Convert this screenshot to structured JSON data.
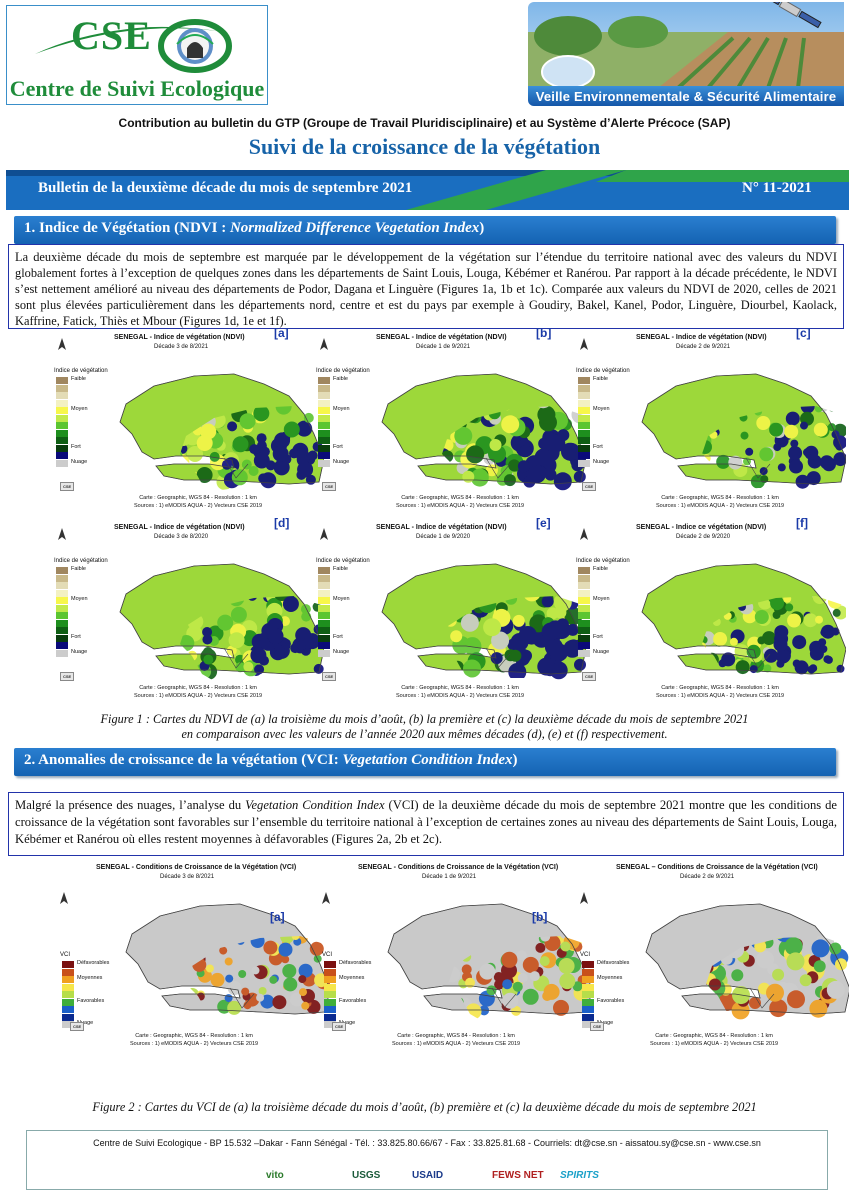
{
  "header": {
    "logo_acronym": "CSE",
    "logo_name": "Centre de Suivi Ecologique",
    "banner_text": "Veille Environnementale  & Sécurité Alimentaire",
    "contribution": "Contribution au bulletin du GTP (Groupe de Travail Pluridisciplinaire) et au Système d’Alerte Précoce (SAP)",
    "main_title": "Suivi de la croissance de la végétation",
    "bulletin_title": "Bulletin de la deuxième décade du mois  de septembre 2021",
    "bulletin_number": "N° 11-2021"
  },
  "section1": {
    "title_prefix": "1. Indice de Végétation (NDVI : ",
    "title_em": "Normalized Difference Vegetation Index",
    "title_suffix": ")",
    "body": "La deuxième décade du mois de septembre est marquée par le développement de la végétation sur l’étendue du territoire national avec des valeurs du NDVI globalement fortes à l’exception de quelques zones dans les départements de Saint Louis, Louga, Kébémer et Ranérou. Par rapport à la décade précédente, le NDVI s’est nettement amélioré au niveau des départements de Podor, Dagana et Linguère (Figures 1a, 1b et 1c). Comparée aux valeurs du NDVI de 2020, celles de 2021 sont plus élevées particulièrement dans les départements nord, centre et est du pays par exemple à Goudiry, Bakel, Kanel, Podor, Linguère, Diourbel, Kaolack, Kaffrine, Fatick, Thiès et Mbour (Figures 1d,  1e et 1f).",
    "maps": [
      {
        "title": "SENEGAL - Indice de végétation (NDVI)",
        "subtitle": "Décade 3 de 8/2021",
        "letter": "[a]"
      },
      {
        "title": "SENEGAL - Indice de végétation (NDVI)",
        "subtitle": "Décade 1 de 9/2021",
        "letter": "[b]"
      },
      {
        "title": "SENEGAL - Indice de végétation (NDVI)",
        "subtitle": "Décade 2 de 9/2021",
        "letter": "[c]"
      },
      {
        "title": "SENEGAL - Indice de végétation (NDVI)",
        "subtitle": "Décade 3 de 8/2020",
        "letter": "[d]"
      },
      {
        "title": "SENEGAL - Indice de végétation (NDVI)",
        "subtitle": "Décade 1 de 9/2020",
        "letter": "[e]"
      },
      {
        "title": "SENEGAL - Indice ce végétation (NDVI)",
        "subtitle": "Décade 2 de 9/2020",
        "letter": "[f]"
      }
    ],
    "legend": {
      "title": "Indice de végétation",
      "labels": [
        "Faible",
        "Moyen",
        "Fort",
        "Nuage"
      ],
      "colors": [
        "#a08760",
        "#c9b98a",
        "#e3dcb6",
        "#f3f1c2",
        "#f7f74a",
        "#c3ea4a",
        "#5cc531",
        "#1e8f1e",
        "#0f5f14",
        "#0a3d0e",
        "#0a0a7a",
        "#cccccc"
      ]
    },
    "credits_line1": "Carte : Geographic, WGS 84 - Resolution : 1 km",
    "credits_line2": "Sources : 1) eMODIS AQUA - 2) Vecteurs CSE 2019",
    "caption_line1": "Figure 1 :  Cartes du NDVI de (a) la troisième du mois d’août, (b) la première et (c) la deuxième décade du mois de septembre 2021",
    "caption_line2": "en comparaison avec  les valeurs de l’année 2020 aux mêmes décades (d), (e) et (f) respectivement."
  },
  "section2": {
    "title_prefix": "2. Anomalies de croissance de la végétation (VCI: ",
    "title_em": "Vegetation Condition Index",
    "title_suffix": ")",
    "body_part1": "Malgré la présence des nuages, l’analyse du ",
    "body_em": "Vegetation Condition Index",
    "body_part2": " (VCI) de la deuxième décade du mois de septembre 2021 montre que les conditions de croissance de la végétation sont favorables sur l’ensemble du territoire national à l’exception de certaines zones au niveau des départements de Saint Louis, Louga, Kébémer et Ranérou où elles restent moyennes à défavorables (Figures 2a, 2b et 2c).",
    "maps": [
      {
        "title": "SENEGAL - Conditions de Croissance de la Végétation (VCI)",
        "subtitle": "Décade 3 de 8/2021",
        "letter": "[a]"
      },
      {
        "title": "SENEGAL - Conditions de Croissance de la Végétation (VCI)",
        "subtitle": "Décade 1 de 9/2021",
        "letter": "[b]"
      },
      {
        "title": "SENEGAL – Conditions de Croissance de la Végétation (VCI)",
        "subtitle": "Décade 2 de 9/2021",
        "letter": ""
      }
    ],
    "legend": {
      "title": "VCI",
      "labels": [
        "Défavorables",
        "Moyennes",
        "Favorables",
        "Nuage"
      ],
      "colors": [
        "#7a1010",
        "#c8501a",
        "#f0a020",
        "#f6e64a",
        "#b6de4a",
        "#3fae3a",
        "#1a5fc8",
        "#0a2a90",
        "#cccccc"
      ]
    },
    "caption": "Figure 2 :  Cartes du VCI de (a) la troisième décade du mois d’août, (b) première et (c) la deuxième décade du mois de septembre 2021"
  },
  "footer": {
    "address": "Centre de Suivi Ecologique - BP 15.532 –Dakar - Fann Sénégal  - Tél. : 33.825.80.66/67 -  Fax : 33.825.81.68 - Courriels: dt@cse.sn - aissatou.sy@cse.sn -  www.cse.sn",
    "partners": [
      "vito",
      "USGS",
      "USAID",
      "FEWS NET",
      "SPIRITS"
    ]
  }
}
